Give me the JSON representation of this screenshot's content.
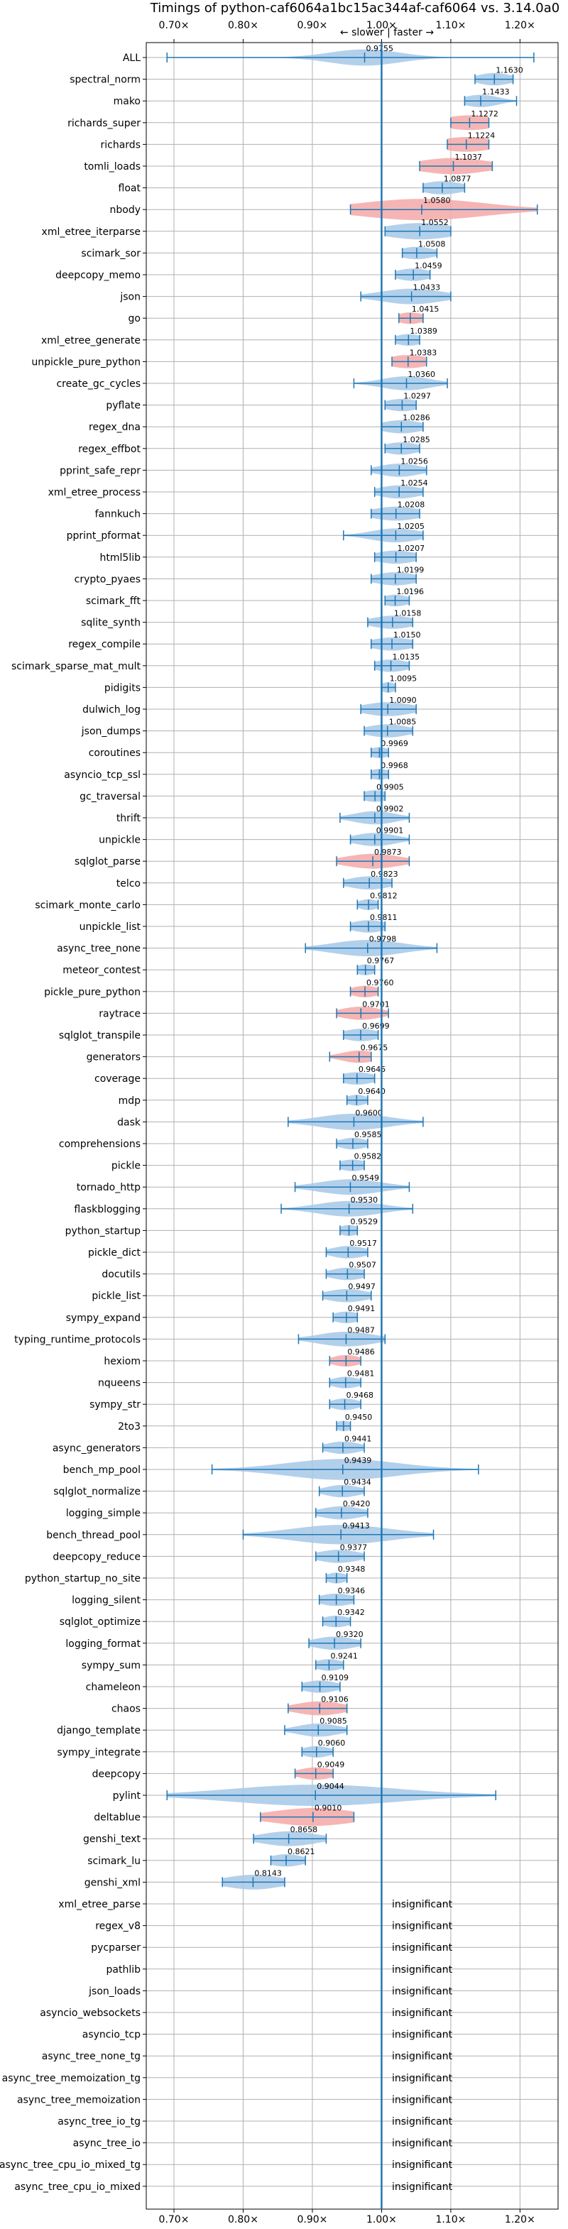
{
  "chart_data": {
    "type": "violin",
    "title": "Timings of python-caf6064a1bc15ac344af-caf6064 vs. 3.14.0a0",
    "subtitle": "← slower | faster →",
    "xlim": [
      0.66,
      1.255
    ],
    "x_ticks": [
      0.7,
      0.8,
      0.9,
      1.0,
      1.1,
      1.2
    ],
    "x_tick_labels": [
      "0.70×",
      "0.80×",
      "0.90×",
      "1.00×",
      "1.10×",
      "1.20×"
    ],
    "reference_line": 1.0,
    "grid": true,
    "colors": {
      "faster": "#a6c8e8",
      "slower": "#f4a8a8",
      "line": "#1f77b4"
    },
    "benchmarks": [
      {
        "name": "ALL",
        "value": 0.9755,
        "label": "0.9755",
        "min": 0.69,
        "max": 1.22,
        "width": 0.05,
        "color": "faster"
      },
      {
        "name": "spectral_norm",
        "value": 1.163,
        "label": "1.1630",
        "min": 1.135,
        "max": 1.19,
        "width": 0.025,
        "color": "faster"
      },
      {
        "name": "mako",
        "value": 1.1433,
        "label": "1.1433",
        "min": 1.12,
        "max": 1.195,
        "width": 0.025,
        "color": "faster"
      },
      {
        "name": "richards_super",
        "value": 1.1272,
        "label": "1.1272",
        "min": 1.1,
        "max": 1.155,
        "width": 0.04,
        "color": "slower"
      },
      {
        "name": "richards",
        "value": 1.1224,
        "label": "1.1224",
        "min": 1.095,
        "max": 1.155,
        "width": 0.04,
        "color": "slower"
      },
      {
        "name": "tomli_loads",
        "value": 1.1037,
        "label": "1.1037",
        "min": 1.055,
        "max": 1.16,
        "width": 0.05,
        "color": "slower"
      },
      {
        "name": "float",
        "value": 1.0877,
        "label": "1.0877",
        "min": 1.06,
        "max": 1.12,
        "width": 0.03,
        "color": "faster"
      },
      {
        "name": "nbody",
        "value": 1.058,
        "label": "1.0580",
        "min": 0.955,
        "max": 1.225,
        "width": 0.09,
        "color": "slower"
      },
      {
        "name": "xml_etree_iterparse",
        "value": 1.0552,
        "label": "1.0552",
        "min": 1.005,
        "max": 1.1,
        "width": 0.05,
        "color": "faster"
      },
      {
        "name": "scimark_sor",
        "value": 1.0508,
        "label": "1.0508",
        "min": 1.03,
        "max": 1.08,
        "width": 0.025,
        "color": "faster"
      },
      {
        "name": "deepcopy_memo",
        "value": 1.0459,
        "label": "1.0459",
        "min": 1.02,
        "max": 1.07,
        "width": 0.025,
        "color": "faster"
      },
      {
        "name": "json",
        "value": 1.0433,
        "label": "1.0433",
        "min": 0.97,
        "max": 1.1,
        "width": 0.045,
        "color": "faster"
      },
      {
        "name": "go",
        "value": 1.0415,
        "label": "1.0415",
        "min": 1.025,
        "max": 1.06,
        "width": 0.02,
        "color": "slower"
      },
      {
        "name": "xml_etree_generate",
        "value": 1.0389,
        "label": "1.0389",
        "min": 1.02,
        "max": 1.055,
        "width": 0.02,
        "color": "faster"
      },
      {
        "name": "unpickle_pure_python",
        "value": 1.0383,
        "label": "1.0383",
        "min": 1.015,
        "max": 1.065,
        "width": 0.03,
        "color": "slower"
      },
      {
        "name": "create_gc_cycles",
        "value": 1.036,
        "label": "1.0360",
        "min": 0.96,
        "max": 1.095,
        "width": 0.035,
        "color": "faster"
      },
      {
        "name": "pyflate",
        "value": 1.0297,
        "label": "1.0297",
        "min": 1.005,
        "max": 1.05,
        "width": 0.025,
        "color": "faster"
      },
      {
        "name": "regex_dna",
        "value": 1.0286,
        "label": "1.0286",
        "min": 1.0,
        "max": 1.06,
        "width": 0.03,
        "color": "faster"
      },
      {
        "name": "regex_effbot",
        "value": 1.0285,
        "label": "1.0285",
        "min": 1.005,
        "max": 1.055,
        "width": 0.025,
        "color": "faster"
      },
      {
        "name": "pprint_safe_repr",
        "value": 1.0256,
        "label": "1.0256",
        "min": 0.985,
        "max": 1.065,
        "width": 0.03,
        "color": "faster"
      },
      {
        "name": "xml_etree_process",
        "value": 1.0254,
        "label": "1.0254",
        "min": 0.99,
        "max": 1.06,
        "width": 0.03,
        "color": "faster"
      },
      {
        "name": "fannkuch",
        "value": 1.0208,
        "label": "1.0208",
        "min": 0.985,
        "max": 1.055,
        "width": 0.035,
        "color": "faster"
      },
      {
        "name": "pprint_pformat",
        "value": 1.0205,
        "label": "1.0205",
        "min": 0.945,
        "max": 1.06,
        "width": 0.035,
        "color": "faster"
      },
      {
        "name": "html5lib",
        "value": 1.0207,
        "label": "1.0207",
        "min": 0.99,
        "max": 1.05,
        "width": 0.03,
        "color": "faster"
      },
      {
        "name": "crypto_pyaes",
        "value": 1.0199,
        "label": "1.0199",
        "min": 0.985,
        "max": 1.05,
        "width": 0.03,
        "color": "faster"
      },
      {
        "name": "scimark_fft",
        "value": 1.0196,
        "label": "1.0196",
        "min": 1.005,
        "max": 1.04,
        "width": 0.02,
        "color": "faster"
      },
      {
        "name": "sqlite_synth",
        "value": 1.0158,
        "label": "1.0158",
        "min": 0.98,
        "max": 1.045,
        "width": 0.03,
        "color": "faster"
      },
      {
        "name": "regex_compile",
        "value": 1.015,
        "label": "1.0150",
        "min": 0.985,
        "max": 1.045,
        "width": 0.03,
        "color": "faster"
      },
      {
        "name": "scimark_sparse_mat_mult",
        "value": 1.0135,
        "label": "1.0135",
        "min": 0.99,
        "max": 1.04,
        "width": 0.025,
        "color": "faster"
      },
      {
        "name": "pidigits",
        "value": 1.0095,
        "label": "1.0095",
        "min": 1.0,
        "max": 1.02,
        "width": 0.012,
        "color": "faster"
      },
      {
        "name": "dulwich_log",
        "value": 1.009,
        "label": "1.0090",
        "min": 0.97,
        "max": 1.05,
        "width": 0.035,
        "color": "faster"
      },
      {
        "name": "json_dumps",
        "value": 1.0085,
        "label": "1.0085",
        "min": 0.975,
        "max": 1.045,
        "width": 0.03,
        "color": "faster"
      },
      {
        "name": "coroutines",
        "value": 0.9969,
        "label": "0.9969",
        "min": 0.985,
        "max": 1.01,
        "width": 0.015,
        "color": "faster"
      },
      {
        "name": "asyncio_tcp_ssl",
        "value": 0.9968,
        "label": "0.9968",
        "min": 0.985,
        "max": 1.01,
        "width": 0.015,
        "color": "faster"
      },
      {
        "name": "gc_traversal",
        "value": 0.9905,
        "label": "0.9905",
        "min": 0.975,
        "max": 1.005,
        "width": 0.02,
        "color": "faster"
      },
      {
        "name": "thrift",
        "value": 0.9902,
        "label": "0.9902",
        "min": 0.94,
        "max": 1.04,
        "width": 0.03,
        "color": "faster"
      },
      {
        "name": "unpickle",
        "value": 0.9901,
        "label": "0.9901",
        "min": 0.955,
        "max": 1.04,
        "width": 0.03,
        "color": "faster"
      },
      {
        "name": "sqlglot_parse",
        "value": 0.9873,
        "label": "0.9873",
        "min": 0.935,
        "max": 1.04,
        "width": 0.04,
        "color": "slower"
      },
      {
        "name": "telco",
        "value": 0.9823,
        "label": "0.9823",
        "min": 0.945,
        "max": 1.015,
        "width": 0.03,
        "color": "faster"
      },
      {
        "name": "scimark_monte_carlo",
        "value": 0.9812,
        "label": "0.9812",
        "min": 0.965,
        "max": 0.995,
        "width": 0.015,
        "color": "faster"
      },
      {
        "name": "unpickle_list",
        "value": 0.9811,
        "label": "0.9811",
        "min": 0.955,
        "max": 1.005,
        "width": 0.025,
        "color": "faster"
      },
      {
        "name": "async_tree_none",
        "value": 0.9798,
        "label": "0.9798",
        "min": 0.89,
        "max": 1.08,
        "width": 0.05,
        "color": "faster"
      },
      {
        "name": "meteor_contest",
        "value": 0.9767,
        "label": "0.9767",
        "min": 0.965,
        "max": 0.99,
        "width": 0.015,
        "color": "faster"
      },
      {
        "name": "pickle_pure_python",
        "value": 0.976,
        "label": "0.9760",
        "min": 0.955,
        "max": 0.995,
        "width": 0.02,
        "color": "slower"
      },
      {
        "name": "raytrace",
        "value": 0.9701,
        "label": "0.9701",
        "min": 0.935,
        "max": 1.01,
        "width": 0.03,
        "color": "slower"
      },
      {
        "name": "sqlglot_transpile",
        "value": 0.9699,
        "label": "0.9699",
        "min": 0.945,
        "max": 0.995,
        "width": 0.025,
        "color": "faster"
      },
      {
        "name": "generators",
        "value": 0.9675,
        "label": "0.9675",
        "min": 0.925,
        "max": 0.985,
        "width": 0.025,
        "color": "slower"
      },
      {
        "name": "coverage",
        "value": 0.9645,
        "label": "0.9645",
        "min": 0.945,
        "max": 0.99,
        "width": 0.025,
        "color": "faster"
      },
      {
        "name": "mdp",
        "value": 0.964,
        "label": "0.9640",
        "min": 0.95,
        "max": 0.98,
        "width": 0.015,
        "color": "faster"
      },
      {
        "name": "dask",
        "value": 0.96,
        "label": "0.9600",
        "min": 0.865,
        "max": 1.06,
        "width": 0.05,
        "color": "faster"
      },
      {
        "name": "comprehensions",
        "value": 0.9585,
        "label": "0.9585",
        "min": 0.935,
        "max": 0.98,
        "width": 0.02,
        "color": "faster"
      },
      {
        "name": "pickle",
        "value": 0.9582,
        "label": "0.9582",
        "min": 0.94,
        "max": 0.975,
        "width": 0.02,
        "color": "faster"
      },
      {
        "name": "tornado_http",
        "value": 0.9549,
        "label": "0.9549",
        "min": 0.875,
        "max": 1.04,
        "width": 0.045,
        "color": "faster"
      },
      {
        "name": "flaskblogging",
        "value": 0.953,
        "label": "0.9530",
        "min": 0.855,
        "max": 1.045,
        "width": 0.045,
        "color": "faster"
      },
      {
        "name": "python_startup",
        "value": 0.9529,
        "label": "0.9529",
        "min": 0.94,
        "max": 0.965,
        "width": 0.015,
        "color": "faster"
      },
      {
        "name": "pickle_dict",
        "value": 0.9517,
        "label": "0.9517",
        "min": 0.92,
        "max": 0.98,
        "width": 0.025,
        "color": "faster"
      },
      {
        "name": "docutils",
        "value": 0.9507,
        "label": "0.9507",
        "min": 0.92,
        "max": 0.975,
        "width": 0.025,
        "color": "faster"
      },
      {
        "name": "pickle_list",
        "value": 0.9497,
        "label": "0.9497",
        "min": 0.915,
        "max": 0.985,
        "width": 0.03,
        "color": "faster"
      },
      {
        "name": "sympy_expand",
        "value": 0.9491,
        "label": "0.9491",
        "min": 0.93,
        "max": 0.965,
        "width": 0.02,
        "color": "faster"
      },
      {
        "name": "typing_runtime_protocols",
        "value": 0.9487,
        "label": "0.9487",
        "min": 0.88,
        "max": 1.005,
        "width": 0.04,
        "color": "faster"
      },
      {
        "name": "hexiom",
        "value": 0.9486,
        "label": "0.9486",
        "min": 0.925,
        "max": 0.97,
        "width": 0.02,
        "color": "slower"
      },
      {
        "name": "nqueens",
        "value": 0.9481,
        "label": "0.9481",
        "min": 0.925,
        "max": 0.97,
        "width": 0.02,
        "color": "faster"
      },
      {
        "name": "sympy_str",
        "value": 0.9468,
        "label": "0.9468",
        "min": 0.925,
        "max": 0.97,
        "width": 0.02,
        "color": "faster"
      },
      {
        "name": "2to3",
        "value": 0.945,
        "label": "0.9450",
        "min": 0.935,
        "max": 0.955,
        "width": 0.012,
        "color": "faster"
      },
      {
        "name": "async_generators",
        "value": 0.9441,
        "label": "0.9441",
        "min": 0.915,
        "max": 0.975,
        "width": 0.025,
        "color": "faster"
      },
      {
        "name": "bench_mp_pool",
        "value": 0.9439,
        "label": "0.9439",
        "min": 0.755,
        "max": 1.14,
        "width": 0.08,
        "color": "faster"
      },
      {
        "name": "sqlglot_normalize",
        "value": 0.9434,
        "label": "0.9434",
        "min": 0.91,
        "max": 0.975,
        "width": 0.025,
        "color": "faster"
      },
      {
        "name": "logging_simple",
        "value": 0.942,
        "label": "0.9420",
        "min": 0.905,
        "max": 0.98,
        "width": 0.03,
        "color": "faster"
      },
      {
        "name": "bench_thread_pool",
        "value": 0.9413,
        "label": "0.9413",
        "min": 0.8,
        "max": 1.075,
        "width": 0.07,
        "color": "faster"
      },
      {
        "name": "deepcopy_reduce",
        "value": 0.9377,
        "label": "0.9377",
        "min": 0.905,
        "max": 0.975,
        "width": 0.03,
        "color": "faster"
      },
      {
        "name": "python_startup_no_site",
        "value": 0.9348,
        "label": "0.9348",
        "min": 0.92,
        "max": 0.95,
        "width": 0.015,
        "color": "faster"
      },
      {
        "name": "logging_silent",
        "value": 0.9346,
        "label": "0.9346",
        "min": 0.91,
        "max": 0.96,
        "width": 0.025,
        "color": "faster"
      },
      {
        "name": "sqlglot_optimize",
        "value": 0.9342,
        "label": "0.9342",
        "min": 0.915,
        "max": 0.955,
        "width": 0.02,
        "color": "faster"
      },
      {
        "name": "logging_format",
        "value": 0.932,
        "label": "0.9320",
        "min": 0.895,
        "max": 0.97,
        "width": 0.03,
        "color": "faster"
      },
      {
        "name": "sympy_sum",
        "value": 0.9241,
        "label": "0.9241",
        "min": 0.905,
        "max": 0.945,
        "width": 0.02,
        "color": "faster"
      },
      {
        "name": "chameleon",
        "value": 0.9109,
        "label": "0.9109",
        "min": 0.885,
        "max": 0.94,
        "width": 0.025,
        "color": "faster"
      },
      {
        "name": "chaos",
        "value": 0.9106,
        "label": "0.9106",
        "min": 0.865,
        "max": 0.95,
        "width": 0.035,
        "color": "slower"
      },
      {
        "name": "django_template",
        "value": 0.9085,
        "label": "0.9085",
        "min": 0.86,
        "max": 0.95,
        "width": 0.03,
        "color": "faster"
      },
      {
        "name": "sympy_integrate",
        "value": 0.906,
        "label": "0.9060",
        "min": 0.885,
        "max": 0.93,
        "width": 0.02,
        "color": "faster"
      },
      {
        "name": "deepcopy",
        "value": 0.9049,
        "label": "0.9049",
        "min": 0.875,
        "max": 0.93,
        "width": 0.025,
        "color": "slower"
      },
      {
        "name": "pylint",
        "value": 0.9044,
        "label": "0.9044",
        "min": 0.69,
        "max": 1.165,
        "width": 0.12,
        "color": "faster"
      },
      {
        "name": "deltablue",
        "value": 0.901,
        "label": "0.9010",
        "min": 0.825,
        "max": 0.96,
        "width": 0.06,
        "color": "slower"
      },
      {
        "name": "genshi_text",
        "value": 0.8658,
        "label": "0.8658",
        "min": 0.815,
        "max": 0.92,
        "width": 0.04,
        "color": "faster"
      },
      {
        "name": "scimark_lu",
        "value": 0.8621,
        "label": "0.8621",
        "min": 0.84,
        "max": 0.89,
        "width": 0.025,
        "color": "faster"
      },
      {
        "name": "genshi_xml",
        "value": 0.8143,
        "label": "0.8143",
        "min": 0.77,
        "max": 0.86,
        "width": 0.04,
        "color": "faster"
      }
    ],
    "insignificant_label": "insignificant",
    "insignificant": [
      "xml_etree_parse",
      "regex_v8",
      "pycparser",
      "pathlib",
      "json_loads",
      "asyncio_websockets",
      "asyncio_tcp",
      "async_tree_none_tg",
      "async_tree_memoization_tg",
      "async_tree_memoization",
      "async_tree_io_tg",
      "async_tree_io",
      "async_tree_cpu_io_mixed_tg",
      "async_tree_cpu_io_mixed"
    ]
  }
}
